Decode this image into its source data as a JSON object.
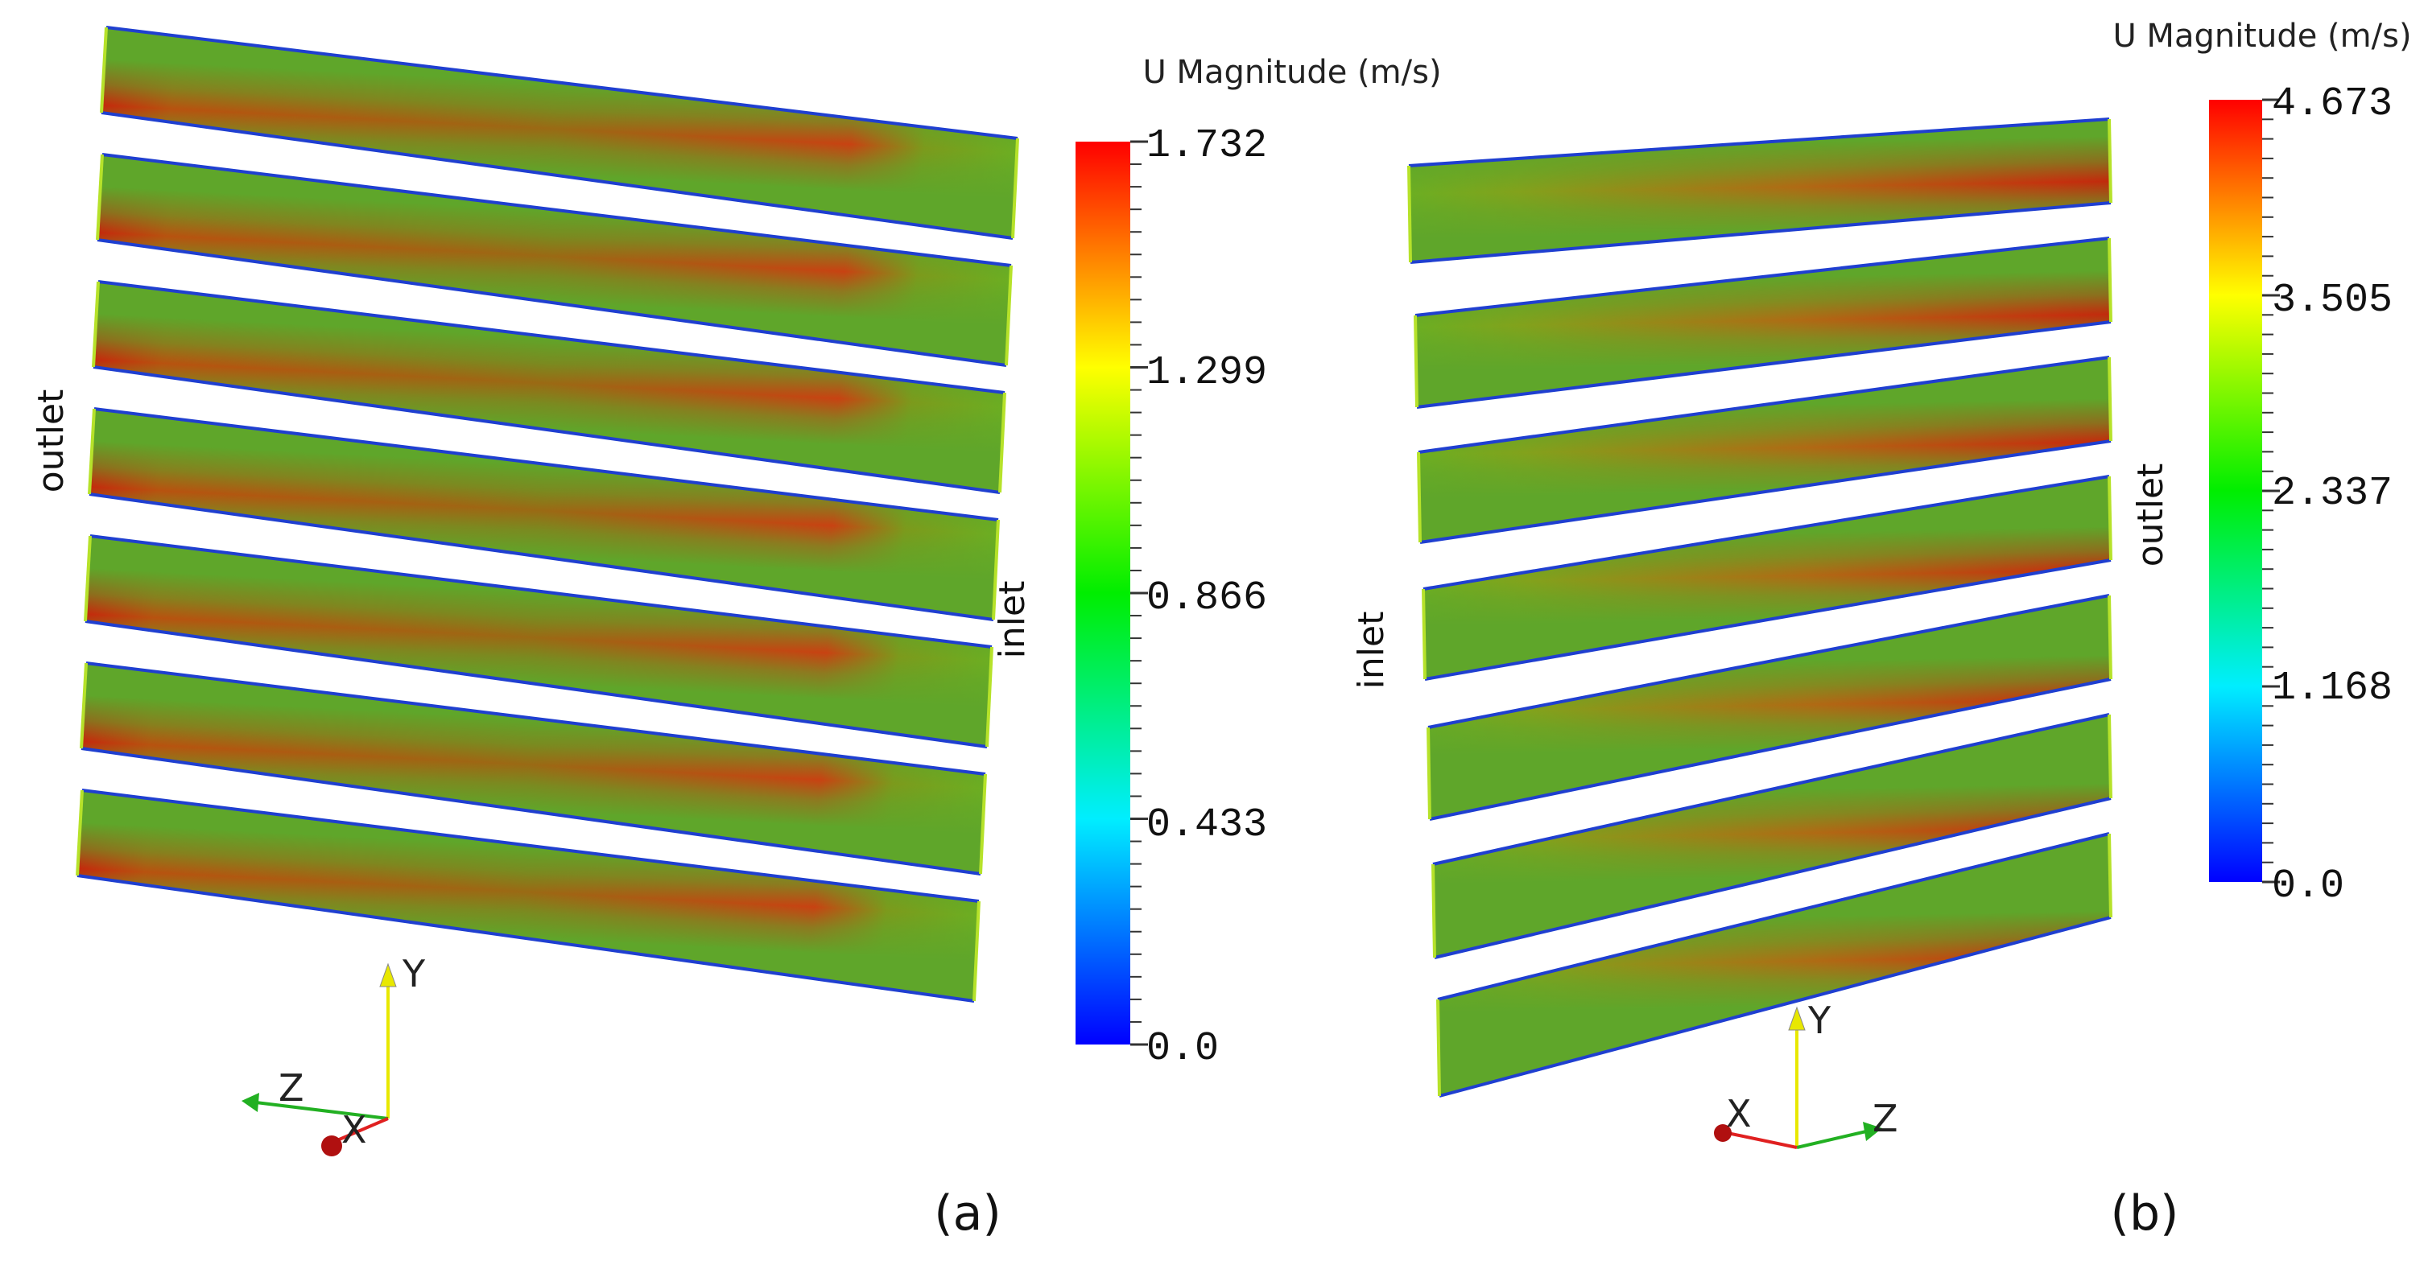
{
  "panels": {
    "a": {
      "label": "(a)",
      "colorbar": {
        "title": "U Magnitude (m/s)",
        "ticks": [
          "1.732",
          "1.299",
          "0.866",
          "0.433",
          "0.0"
        ],
        "min": 0.0,
        "max": 1.732
      },
      "inlet_label": "inlet",
      "outlet_label": "outlet",
      "channel_count": 7,
      "axes": {
        "y": "Y",
        "z": "Z",
        "x": "X"
      }
    },
    "b": {
      "label": "(b)",
      "colorbar": {
        "title": "U Magnitude (m/s)",
        "ticks": [
          "4.673",
          "3.505",
          "2.337",
          "1.168",
          "0.0"
        ],
        "min": 0.0,
        "max": 4.673
      },
      "inlet_label": "inlet",
      "outlet_label": "outlet",
      "channel_count": 7,
      "axes": {
        "y": "Y",
        "x": "X",
        "z": "Z"
      }
    }
  },
  "colors": {
    "wall": "#1f3fd0",
    "edge": "#b6e22a",
    "core": "#cc3a12",
    "bulk": "#5fb228",
    "ramp": [
      "#0000ff",
      "#00ffff",
      "#00ff00",
      "#ffff00",
      "#ff0000"
    ]
  }
}
